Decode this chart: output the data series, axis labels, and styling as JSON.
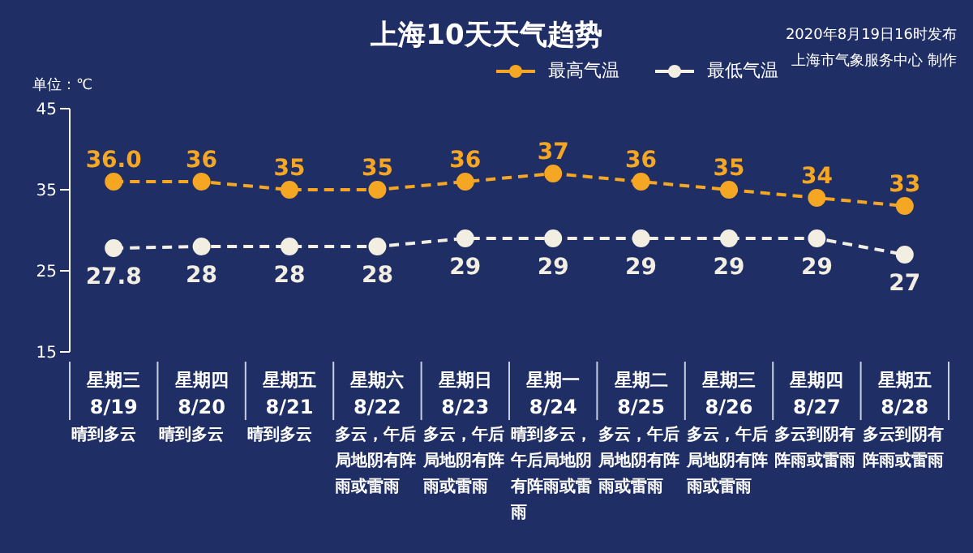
{
  "chart_data": {
    "type": "line",
    "title": "上海10天天气趋势",
    "ylabel": "单位：℃",
    "annotations": [
      "2020年8月19日16时发布",
      "上海市气象服务中心 制作"
    ],
    "categories": [
      "星期三\n8/19\n晴到多云",
      "星期四\n8/20\n晴到多云",
      "星期五\n8/21\n晴到多云",
      "星期六\n8/22\n多云，午后局地阴有阵雨或雷雨",
      "星期日\n8/23\n多云，午后局地阴有阵雨或雷雨",
      "星期一\n8/24\n晴到多云，午后局地阴有阵雨或雷雨",
      "星期二\n8/25\n多云，午后局地阴有阵雨或雷雨",
      "星期三\n8/26\n多云，午后局地阴有阵雨或雷雨",
      "星期四\n8/27\n多云到阴有阵雨或雷雨",
      "星期五\n8/28\n多云到阴有阵雨或雷雨"
    ],
    "series": [
      {
        "name": "最高气温",
        "color": "#f5a623",
        "values": [
          36,
          36,
          35,
          35,
          36,
          37,
          36,
          35,
          34,
          33
        ],
        "value_labels": [
          "36.0",
          "36",
          "35",
          "35",
          "36",
          "37",
          "36",
          "35",
          "34",
          "33"
        ]
      },
      {
        "name": "最低气温",
        "color": "#f2eee2",
        "values": [
          27.8,
          28,
          28,
          28,
          29,
          29,
          29,
          29,
          29,
          27
        ],
        "value_labels": [
          "27.8",
          "28",
          "28",
          "28",
          "29",
          "29",
          "29",
          "29",
          "29",
          "27"
        ]
      }
    ],
    "ylim": [
      15,
      45
    ],
    "yticks": [
      15,
      25,
      35,
      45
    ],
    "grid": false,
    "legend": "top right",
    "marker": "circle",
    "line_style": "dashed"
  }
}
